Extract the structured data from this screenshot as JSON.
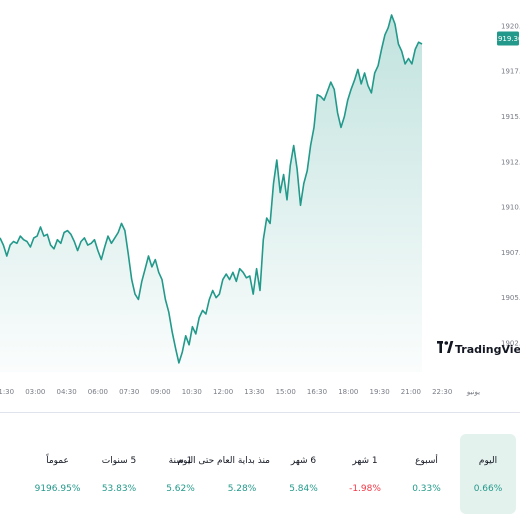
{
  "chart_data": {
    "type": "area",
    "x_ticks": [
      "01:30",
      "03:00",
      "04:30",
      "06:00",
      "07:30",
      "09:00",
      "10:30",
      "12:00",
      "13:30",
      "15:00",
      "16:30",
      "18:00",
      "19:30",
      "21:00",
      "22:30",
      "يونيو"
    ],
    "y_ticks": [
      1920.0,
      1917.5,
      1915.0,
      1912.5,
      1910.0,
      1907.5,
      1905.0,
      1902.5
    ],
    "y_tick_labels": [
      "1920.00",
      "1917.50",
      "1915.00",
      "1912.50",
      "1910.00",
      "1907.50",
      "1905.00",
      "1902.50"
    ],
    "ylim": [
      1900.9,
      1920.6
    ],
    "current_price": 1919.3,
    "current_price_label": "1919.30",
    "line_color": "#22998a",
    "fill_color": "#22998a",
    "series": [
      {
        "values": [
          1908.3,
          1907.9,
          1907.3,
          1907.9,
          1908.1,
          1908.0,
          1908.4,
          1908.2,
          1908.1,
          1907.8,
          1908.3,
          1908.4,
          1908.9,
          1908.4,
          1908.5,
          1907.9,
          1907.7,
          1908.2,
          1908.0,
          1908.6,
          1908.7,
          1908.5,
          1908.1,
          1907.6,
          1908.1,
          1908.3,
          1907.9,
          1908.0,
          1908.2,
          1907.6,
          1907.1,
          1907.8,
          1908.4,
          1908.0,
          1908.3,
          1908.6,
          1909.1,
          1908.7,
          1907.4,
          1906.0,
          1905.2,
          1904.9,
          1905.9,
          1906.6,
          1907.3,
          1906.7,
          1907.1,
          1906.4,
          1906.0,
          1904.9,
          1904.2,
          1903.1,
          1902.2,
          1901.4,
          1902.0,
          1902.9,
          1902.4,
          1903.4,
          1903.0,
          1903.9,
          1904.3,
          1904.1,
          1904.9,
          1905.4,
          1905.0,
          1905.2,
          1906.0,
          1906.3,
          1906.0,
          1906.4,
          1905.9,
          1906.6,
          1906.4,
          1906.1,
          1906.2,
          1905.2,
          1906.6,
          1905.4,
          1908.2,
          1909.4,
          1909.1,
          1911.3,
          1912.6,
          1910.8,
          1911.8,
          1910.4,
          1912.3,
          1913.4,
          1912.1,
          1910.1,
          1911.3,
          1912.0,
          1913.4,
          1914.4,
          1916.2,
          1916.1,
          1915.9,
          1916.4,
          1916.9,
          1916.5,
          1915.2,
          1914.4,
          1915.0,
          1915.9,
          1916.5,
          1917.0,
          1917.6,
          1916.8,
          1917.4,
          1916.7,
          1916.3,
          1917.4,
          1917.8,
          1918.7,
          1919.5,
          1919.9,
          1920.6,
          1920.1,
          1919.0,
          1918.6,
          1917.9,
          1918.2,
          1917.9,
          1918.7,
          1919.1,
          1919.0
        ]
      }
    ]
  },
  "watermark": {
    "text": "TradingView",
    "logo": "17"
  },
  "tabs": [
    {
      "label": "اليوم",
      "value": "0.66%",
      "color": "#22998a",
      "active": true
    },
    {
      "label": "أسبوع",
      "value": "0.33%",
      "color": "#22998a",
      "active": false
    },
    {
      "label": "1 شهر",
      "value": "-1.98%",
      "color": "#f23645",
      "active": false
    },
    {
      "label": "6 شهر",
      "value": "5.84%",
      "color": "#22998a",
      "active": false
    },
    {
      "label": "منذ بداية العام حتى اليوم",
      "value": "5.28%",
      "color": "#22998a",
      "active": false
    },
    {
      "label": "1 سنة",
      "value": "5.62%",
      "color": "#22998a",
      "active": false
    },
    {
      "label": "5 سنوات",
      "value": "53.83%",
      "color": "#22998a",
      "active": false
    },
    {
      "label": "عموماً",
      "value": "9196.95%",
      "color": "#22998a",
      "active": false
    }
  ]
}
